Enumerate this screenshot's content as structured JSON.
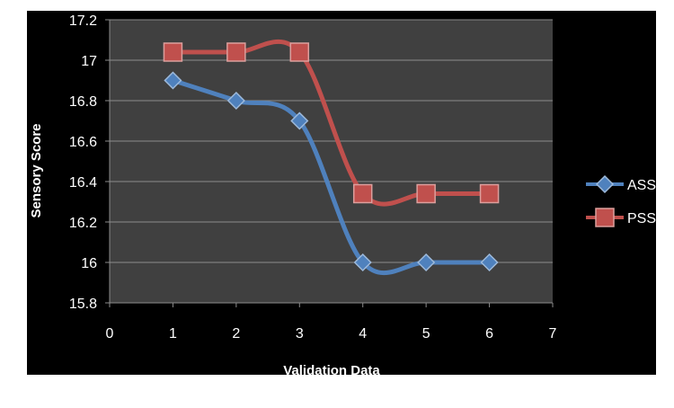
{
  "chart_data": {
    "type": "line",
    "title": "",
    "xlabel": "Validation Data",
    "ylabel": "Sensory Score",
    "xlim": [
      0,
      7
    ],
    "ylim": [
      15.8,
      17.2
    ],
    "x_ticks": [
      "0",
      "1",
      "2",
      "3",
      "4",
      "5",
      "6",
      "7"
    ],
    "y_ticks": [
      "15.8",
      "16",
      "16.2",
      "16.4",
      "16.6",
      "16.8",
      "17",
      "17.2"
    ],
    "grid": true,
    "legend_position": "right",
    "smooth": true,
    "series": [
      {
        "name": "ASS",
        "color": "#4f81bd",
        "marker": "diamond",
        "x": [
          1,
          2,
          3,
          4,
          5,
          6
        ],
        "values": [
          16.9,
          16.8,
          16.7,
          16.0,
          16.0,
          16.0
        ]
      },
      {
        "name": "PSS",
        "color": "#c0504d",
        "marker": "square",
        "x": [
          1,
          2,
          3,
          4,
          5,
          6
        ],
        "values": [
          17.04,
          17.04,
          17.04,
          16.34,
          16.34,
          16.34
        ]
      }
    ],
    "colors": {
      "background": "#000000",
      "plot_area": "#404040",
      "gridline": "#8c8c8c",
      "text": "#ffffff"
    }
  }
}
